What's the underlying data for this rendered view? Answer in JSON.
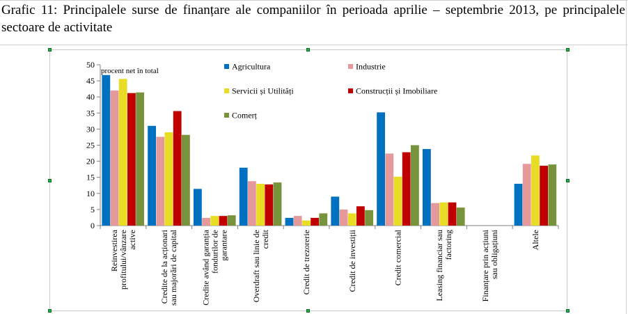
{
  "caption": "Grafic 11: Principalele surse de finanțare ale companiilor în perioada aprilie – septembrie 2013, pe principalele sectoare de activitate",
  "chart_data": {
    "type": "bar",
    "ylabel": "procent net în total",
    "ylim": [
      0,
      50
    ],
    "yticks": [
      0,
      5,
      10,
      15,
      20,
      25,
      30,
      35,
      40,
      45,
      50
    ],
    "grid": false,
    "legend_position": "top",
    "categories": [
      [
        "Reinvestirea",
        "profitului/vânzare",
        "active"
      ],
      [
        "Credite de la acționari",
        "sau majorări de capital"
      ],
      [
        "Credite având garanția",
        "fondurilor de",
        "garantare"
      ],
      [
        "Overdraft sau linie de",
        "credit"
      ],
      [
        "Credit de trezorerie"
      ],
      [
        "Credit de investiții"
      ],
      [
        "Credit comercial"
      ],
      [
        "Leasing financiar sau",
        "factoring"
      ],
      [
        "Finanțare prin acțiuni",
        "sau obligațiuni"
      ],
      [
        "Altele"
      ]
    ],
    "series": [
      {
        "name": "Agricultura",
        "color": "#0070c0",
        "values": [
          46.8,
          31,
          11.4,
          18,
          2.4,
          9,
          35.2,
          23.8,
          0,
          13
        ]
      },
      {
        "name": "Industrie",
        "color": "#e6999b",
        "values": [
          42,
          27.6,
          2.4,
          13.8,
          3,
          5,
          22.4,
          7,
          0,
          19.2
        ]
      },
      {
        "name": "Servicii și Utilități",
        "color": "#e8dd24",
        "values": [
          45.6,
          29,
          3,
          13,
          1.6,
          3.8,
          15.2,
          7.2,
          0,
          21.8
        ]
      },
      {
        "name": "Construcții și Imobiliare",
        "color": "#c00000",
        "values": [
          41.2,
          35.6,
          3,
          12.8,
          2.4,
          6,
          22.8,
          7.2,
          0,
          18.6
        ]
      },
      {
        "name": "Comerț",
        "color": "#77933c",
        "values": [
          41.4,
          28.2,
          3.2,
          13.4,
          3.8,
          4.8,
          25,
          5.6,
          0,
          19
        ]
      }
    ]
  }
}
